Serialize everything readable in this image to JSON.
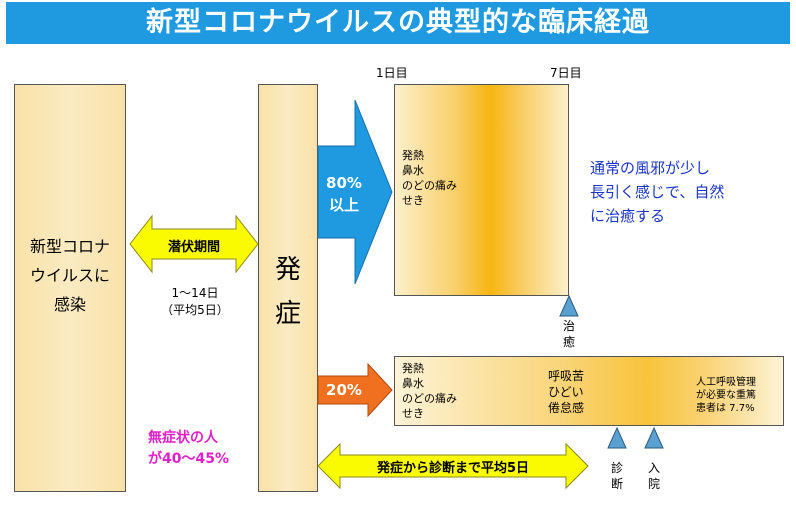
{
  "title": "新型コロナウイルスの典型的な臨床経過",
  "infection": {
    "lines": [
      "新型コロナ",
      "ウイルスに",
      "感染"
    ]
  },
  "incubation": {
    "label": "潜伏期間",
    "range": "1〜14日",
    "average": "（平均5日）"
  },
  "onset": {
    "lines": [
      "発",
      "症"
    ]
  },
  "mild_path": {
    "percent_lines": [
      "80%",
      "以上"
    ],
    "day_start": "1日目",
    "day_end": "7日目",
    "symptoms": [
      "発熱",
      "鼻水",
      "のどの痛み",
      "せき"
    ],
    "outcome_lines": [
      "通常の風邪が少し",
      "長引く感じで、自然",
      "に治癒する"
    ],
    "heal_marker": [
      "治",
      "癒"
    ]
  },
  "severe_path": {
    "percent": "20%",
    "symptoms": [
      "発熱",
      "鼻水",
      "のどの痛み",
      "せき"
    ],
    "worse": [
      "呼吸苦",
      "ひどい",
      "倦怠感"
    ],
    "note": [
      "人工呼吸管理",
      "が必要な重篤",
      "患者は 7.7%"
    ],
    "diagnosis_marker": [
      "診",
      "断"
    ],
    "admission_marker": [
      "入",
      "院"
    ]
  },
  "asymptomatic": {
    "lines": [
      "無症状の人",
      "が40〜45%"
    ]
  },
  "diagnosis_interval": {
    "label": "発症から診断まで平均5日"
  },
  "colors": {
    "title_bg": "#1f9ae0",
    "blue_arrow": "#1f9ae0",
    "orange_arrow": "#f07020",
    "yellow_arrow": "#fbfb00",
    "marker": "#5aa0d0"
  }
}
